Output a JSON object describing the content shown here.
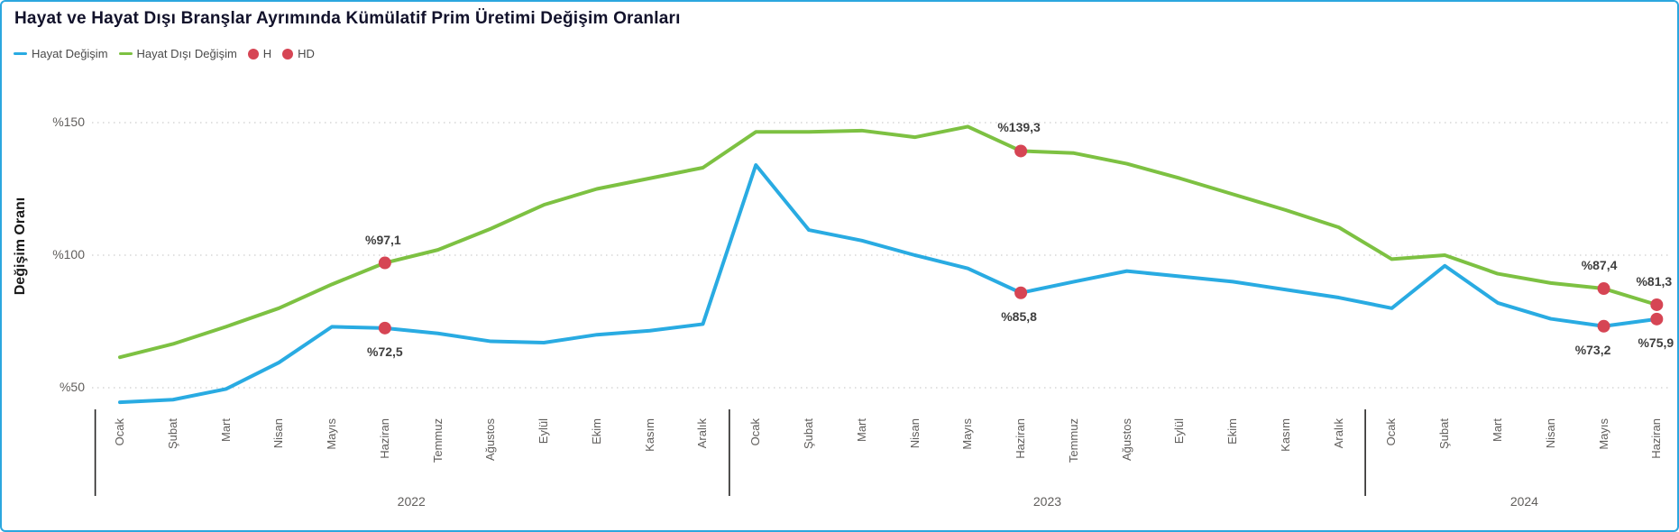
{
  "chart_data": {
    "type": "line",
    "title": "Hayat ve Hayat Dışı Branşlar Ayrımında Kümülatif Prim Üretimi Değişim Oranları",
    "ylabel": "Değişim Oranı",
    "grid": true,
    "legend_position": "top-left",
    "y_axis": {
      "ticks": [
        {
          "label": "%50",
          "value": 50
        },
        {
          "label": "%100",
          "value": 100
        },
        {
          "label": "%150",
          "value": 150
        }
      ],
      "ylim": [
        38,
        158
      ]
    },
    "x_axis": {
      "years": [
        {
          "label": "2022",
          "months": [
            "Ocak",
            "Şubat",
            "Mart",
            "Nisan",
            "Mayıs",
            "Haziran",
            "Temmuz",
            "Ağustos",
            "Eylül",
            "Ekim",
            "Kasım",
            "Aralık"
          ]
        },
        {
          "label": "2023",
          "months": [
            "Ocak",
            "Şubat",
            "Mart",
            "Nisan",
            "Mayıs",
            "Haziran",
            "Temmuz",
            "Ağustos",
            "Eylül",
            "Ekim",
            "Kasım",
            "Aralık"
          ]
        },
        {
          "label": "2024",
          "months": [
            "Ocak",
            "Şubat",
            "Mart",
            "Nisan",
            "Mayıs",
            "Haziran"
          ]
        }
      ]
    },
    "series": [
      {
        "name": "Hayat Değişim",
        "color": "#29ABE2",
        "values": [
          44.5,
          45.5,
          49.5,
          59.5,
          73,
          72.5,
          70.5,
          67.5,
          67,
          70,
          71.5,
          74,
          134,
          109.5,
          105.5,
          100,
          95,
          85.8,
          90,
          94,
          92,
          90,
          87,
          84,
          80,
          96,
          82,
          76,
          73.2,
          75.9
        ]
      },
      {
        "name": "Hayat Dışı Değişim",
        "color": "#7DC142",
        "values": [
          61.5,
          66.5,
          73,
          80,
          89,
          97.1,
          102,
          110,
          119,
          125,
          129,
          133,
          146.5,
          146.5,
          147,
          144.5,
          148.5,
          139.3,
          138.5,
          134.5,
          129,
          123,
          117,
          110.5,
          98.5,
          100,
          93,
          89.5,
          87.4,
          81.3
        ]
      }
    ],
    "markers": {
      "color": "#D64554",
      "points": [
        {
          "series": 1,
          "index": 5,
          "label": "%97,1",
          "pos": "above",
          "dx": -2
        },
        {
          "series": 0,
          "index": 5,
          "label": "%72,5",
          "pos": "below",
          "dx": 0
        },
        {
          "series": 1,
          "index": 17,
          "label": "%139,3",
          "pos": "above",
          "dx": -2
        },
        {
          "series": 0,
          "index": 17,
          "label": "%85,8",
          "pos": "below",
          "dx": -2
        },
        {
          "series": 1,
          "index": 28,
          "label": "%87,4",
          "pos": "above",
          "dx": -5
        },
        {
          "series": 0,
          "index": 28,
          "label": "%73,2",
          "pos": "below",
          "dx": -12
        },
        {
          "series": 1,
          "index": 29,
          "label": "%81,3",
          "pos": "above",
          "dx": -3
        },
        {
          "series": 0,
          "index": 29,
          "label": "%75,9",
          "pos": "below",
          "dx": -1
        }
      ]
    },
    "legend": [
      {
        "label": "Hayat Değişim",
        "marker": "line",
        "color": "#29ABE2"
      },
      {
        "label": "Hayat Dışı Değişim",
        "marker": "line",
        "color": "#7DC142"
      },
      {
        "label": "H",
        "marker": "dot",
        "color": "#D64554"
      },
      {
        "label": "HD",
        "marker": "dot",
        "color": "#D64554"
      }
    ]
  }
}
